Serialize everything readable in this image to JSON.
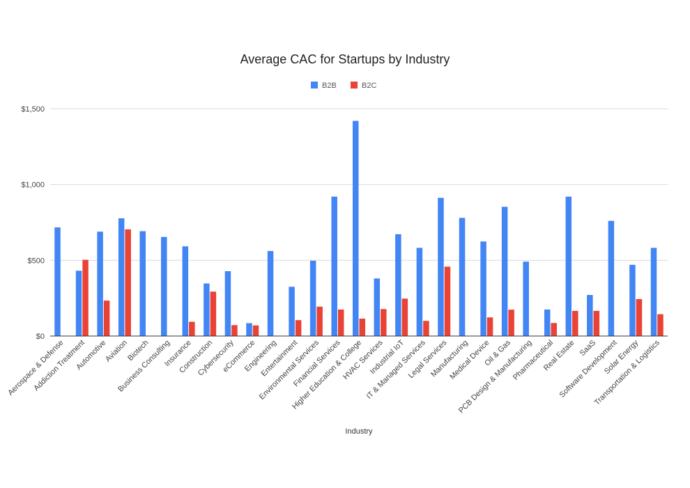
{
  "chart_data": {
    "type": "bar",
    "title": "Average CAC for Startups by Industry",
    "xlabel": "Industry",
    "ylabel": "",
    "ylim": [
      0,
      1500
    ],
    "y_ticks": [
      "$0",
      "$500",
      "$1,000",
      "$1,500"
    ],
    "y_tick_values": [
      0,
      500,
      1000,
      1500
    ],
    "grid": true,
    "legend_position": "top-center",
    "categories": [
      "Aerospace & Defense",
      "Addiction Treatment",
      "Automotive",
      "Aviation",
      "Biotech",
      "Business Consulting",
      "Insurance",
      "Construction",
      "Cybersecurity",
      "eCommerce",
      "Engineering",
      "Entertainment",
      "Environmental Services",
      "Financial Services",
      "Higher Education & College",
      "HVAC Services",
      "Industrial IoT",
      "IT & Managed Services",
      "Legal Services",
      "Manufacturing",
      "Medical Device",
      "Oil & Gas",
      "PCB Design & Manufacturing",
      "Pharmaceutical",
      "Real Estate",
      "SaaS",
      "Software Development",
      "Solar Energy",
      "Transportation & Logistics"
    ],
    "series": [
      {
        "name": "B2B",
        "color": "#4285f4",
        "values": [
          717,
          431,
          689,
          777,
          692,
          654,
          592,
          347,
          428,
          85,
          561,
          325,
          497,
          920,
          1420,
          380,
          672,
          582,
          912,
          780,
          624,
          853,
          491,
          175,
          920,
          271,
          760,
          470,
          582
        ]
      },
      {
        "name": "B2C",
        "color": "#ea4335",
        "values": [
          null,
          503,
          234,
          704,
          null,
          null,
          94,
          293,
          72,
          70,
          null,
          105,
          194,
          175,
          115,
          178,
          247,
          100,
          458,
          null,
          123,
          174,
          null,
          86,
          166,
          166,
          null,
          244,
          144
        ]
      }
    ]
  }
}
